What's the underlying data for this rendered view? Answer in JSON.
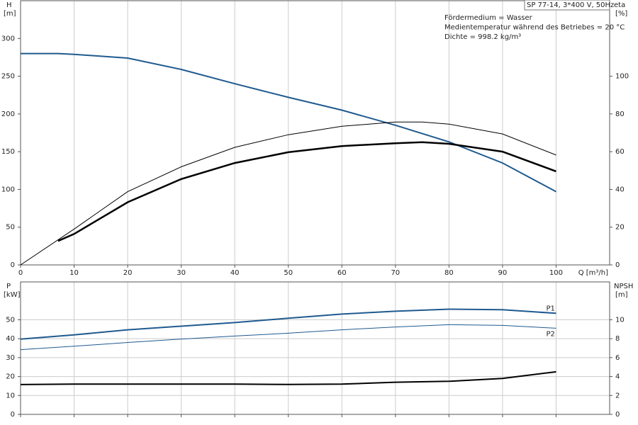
{
  "chart_data": [
    {
      "type": "line",
      "title": "SP 77-14, 3*400 V, 50Hz",
      "notes": [
        "Fördermedium = Wasser",
        "Medientemperatur während des Betriebes = 20 °C",
        "Dichte = 998.2 kg/m³"
      ],
      "y_label": "H",
      "y_unit": "[m]",
      "y2_label": "eta",
      "y2_unit": "[%]",
      "x_label": "Q [m³/h]",
      "xlim": [
        0,
        110
      ],
      "xticks": [
        0,
        10,
        20,
        30,
        40,
        50,
        60,
        70,
        80,
        90,
        100
      ],
      "ylim": [
        0,
        350
      ],
      "yticks": [
        0,
        50,
        100,
        150,
        200,
        250,
        300
      ],
      "y2lim": [
        0,
        140
      ],
      "y2ticks": [
        0,
        20,
        40,
        60,
        80,
        100
      ],
      "grid": "x",
      "series": [
        {
          "color": "#1f5a8f",
          "line_width": 2,
          "axis": "y",
          "x": [
            0,
            7,
            10,
            20,
            30,
            40,
            50,
            60,
            70,
            80,
            90,
            100
          ],
          "values": [
            280,
            280,
            279,
            274,
            259,
            240,
            222,
            205,
            185,
            163,
            135,
            97
          ]
        },
        {
          "color": "#000000",
          "line_width": 1,
          "axis": "y2",
          "x": [
            0,
            10,
            20,
            30,
            40,
            50,
            60,
            70,
            75,
            80,
            90,
            100
          ],
          "values": [
            0,
            19,
            38.8,
            52,
            62.3,
            69,
            73.5,
            75.7,
            75.7,
            74.6,
            69.4,
            58.2
          ]
        },
        {
          "color": "#000000",
          "line_width": 2.5,
          "axis": "y2",
          "x": [
            7,
            10,
            20,
            30,
            40,
            50,
            60,
            70,
            75,
            80,
            90,
            100
          ],
          "values": [
            12.7,
            16.4,
            33.2,
            45.5,
            54,
            59.7,
            63,
            64.5,
            65,
            64.2,
            60,
            49.6
          ]
        }
      ]
    },
    {
      "type": "line",
      "y_label": "P",
      "y_unit": "[kW]",
      "y2_label": "NPSH",
      "y2_unit": "[m]",
      "xlim": [
        0,
        110
      ],
      "xticks": [
        0,
        10,
        20,
        30,
        40,
        50,
        60,
        70,
        80,
        90,
        100
      ],
      "ylim": [
        0,
        70
      ],
      "yticks": [
        0,
        10,
        20,
        30,
        40,
        50
      ],
      "y2lim": [
        0,
        14
      ],
      "y2ticks": [
        0,
        2,
        4,
        6,
        8,
        10
      ],
      "grid": "both",
      "series": [
        {
          "name": "P1",
          "color": "#1f5a8f",
          "line_width": 2,
          "axis": "y",
          "x": [
            0,
            10,
            20,
            30,
            40,
            50,
            60,
            70,
            80,
            90,
            100
          ],
          "values": [
            39.8,
            42,
            44.7,
            46.6,
            48.5,
            50.8,
            53,
            54.5,
            55.6,
            55.3,
            53.4
          ]
        },
        {
          "name": "P2",
          "color": "#1f5a8f",
          "line_width": 1,
          "axis": "y",
          "x": [
            0,
            10,
            20,
            30,
            40,
            50,
            60,
            70,
            80,
            90,
            100
          ],
          "values": [
            34.2,
            36,
            38,
            39.8,
            41.4,
            42.9,
            44.7,
            46.2,
            47.4,
            47,
            45.5
          ]
        },
        {
          "color": "#000000",
          "line_width": 2,
          "axis": "y2",
          "x": [
            0,
            10,
            20,
            30,
            40,
            50,
            60,
            70,
            80,
            90,
            100
          ],
          "values": [
            3.15,
            3.2,
            3.2,
            3.2,
            3.2,
            3.16,
            3.2,
            3.4,
            3.5,
            3.8,
            4.5
          ]
        }
      ]
    }
  ]
}
